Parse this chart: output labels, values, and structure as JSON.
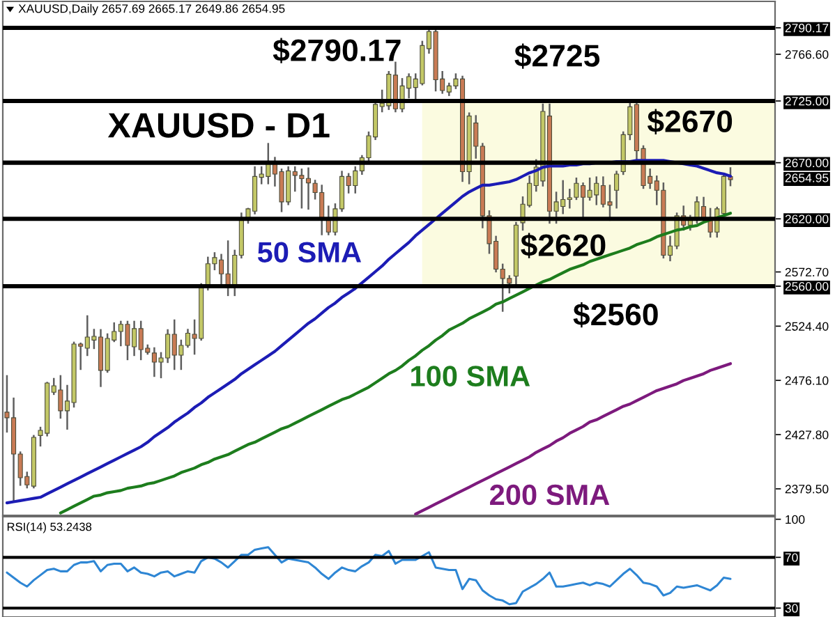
{
  "chart_data": [
    {
      "type": "candlestick",
      "title": "XAUUSD,Daily 2657.69 2665.17 2649.86 2654.95",
      "subtitle": "XAUUSD - D1",
      "categories": [
        null,
        null,
        null,
        null,
        null,
        null,
        null,
        null,
        null,
        null,
        null,
        null,
        null,
        null,
        null,
        null,
        null,
        null,
        null,
        null,
        null,
        null,
        null,
        null,
        null,
        null,
        null,
        null,
        null,
        null,
        null,
        null,
        null,
        null,
        null,
        null,
        null,
        null,
        null,
        null,
        null,
        null,
        null,
        null,
        null,
        null,
        null,
        null,
        null,
        null,
        null,
        null,
        null,
        null,
        null,
        null,
        null,
        null,
        null,
        null,
        null,
        null,
        null,
        null,
        null,
        null,
        null,
        null,
        null,
        null,
        null,
        null,
        null,
        null,
        null,
        null,
        null,
        null,
        null,
        null,
        null,
        null,
        null,
        null,
        null,
        null,
        null,
        null,
        null,
        null,
        null,
        null,
        null,
        null,
        null,
        null,
        null,
        null,
        null,
        null,
        null,
        null,
        null,
        null,
        null,
        null,
        null,
        null,
        null
      ],
      "ohlc": [
        [
          2447.8,
          2480,
          2430.4,
          2442.8
        ],
        [
          2442.8,
          2460,
          2368,
          2410.5
        ],
        [
          2410.5,
          2412,
          2383,
          2389.4
        ],
        [
          2390.5,
          2394,
          2380.7,
          2383
        ],
        [
          2381.9,
          2426.7,
          2380.7,
          2425.4
        ],
        [
          2427,
          2434,
          2418,
          2431.6
        ],
        [
          2429,
          2474,
          2427,
          2473.8
        ],
        [
          2465.5,
          2477.5,
          2463.9,
          2471.3
        ],
        [
          2467.6,
          2480,
          2442.8,
          2449
        ],
        [
          2449,
          2471.3,
          2433,
          2457.7
        ],
        [
          2456.4,
          2509.8,
          2452.7,
          2508.5
        ],
        [
          2508.5,
          2509,
          2486.2,
          2506.5
        ],
        [
          2504.8,
          2533.3,
          2498.6,
          2514.7
        ],
        [
          2512,
          2521.2,
          2504.8,
          2515.3
        ],
        [
          2514.7,
          2521,
          2471,
          2485
        ],
        [
          2485,
          2517.2,
          2483.7,
          2513.5
        ],
        [
          2512,
          2527,
          2511,
          2519.7
        ],
        [
          2519.7,
          2528.4,
          2507.3,
          2526
        ],
        [
          2526,
          2528.4,
          2494.9,
          2507.3
        ],
        [
          2506,
          2528.4,
          2498.6,
          2522.2
        ],
        [
          2522.2,
          2528.4,
          2494.9,
          2503.5
        ],
        [
          2504.8,
          2507.3,
          2499.8,
          2501.1
        ],
        [
          2500.5,
          2504.8,
          2480,
          2492.4
        ],
        [
          2492.4,
          2500.5,
          2478.8,
          2496.1
        ],
        [
          2496.1,
          2520.9,
          2492.4,
          2517.2
        ],
        [
          2517.2,
          2529.6,
          2486.2,
          2498.6
        ],
        [
          2498.6,
          2511.6,
          2486.2,
          2507.3
        ],
        [
          2507.3,
          2521.2,
          2506,
          2518.1
        ],
        [
          2517.2,
          2529.6,
          2499.8,
          2513.5
        ],
        [
          2513.5,
          2561.9,
          2512.3,
          2560.7
        ],
        [
          2559.4,
          2585.5,
          2557,
          2580
        ],
        [
          2580,
          2589.5,
          2575,
          2585.5
        ],
        [
          2583.4,
          2588,
          2560.7,
          2571
        ],
        [
          2571,
          2600,
          2552,
          2558.6
        ],
        [
          2558.6,
          2591.7,
          2552,
          2587.6
        ],
        [
          2587.6,
          2624.8,
          2585.5,
          2620.6
        ],
        [
          2620.6,
          2629,
          2616.5,
          2628.9
        ],
        [
          2626.8,
          2666,
          2624.8,
          2657.8
        ],
        [
          2657,
          2666,
          2651.6,
          2659.9
        ],
        [
          2657.8,
          2686.8,
          2651.6,
          2671.1
        ],
        [
          2671.1,
          2674.4,
          2649.6,
          2659.9
        ],
        [
          2662,
          2664,
          2626.8,
          2635.1
        ],
        [
          2635.1,
          2666,
          2633,
          2662.7
        ],
        [
          2662,
          2666,
          2645,
          2658.7
        ],
        [
          2658.7,
          2664,
          2630,
          2655.8
        ],
        [
          2656,
          2665,
          2629,
          2652
        ],
        [
          2651.6,
          2654,
          2638,
          2643.4
        ],
        [
          2643.4,
          2649.6,
          2606.2,
          2620.6
        ],
        [
          2620.6,
          2631,
          2606.2,
          2608.2
        ],
        [
          2608.2,
          2633,
          2606,
          2628.9
        ],
        [
          2628.9,
          2662,
          2627,
          2657.8
        ],
        [
          2657.8,
          2660,
          2643.4,
          2649.6
        ],
        [
          2649.6,
          2666,
          2643.4,
          2662.7
        ],
        [
          2662.7,
          2676,
          2660,
          2674.4
        ],
        [
          2674.4,
          2697,
          2672,
          2694
        ],
        [
          2693,
          2726,
          2691,
          2722
        ],
        [
          2720,
          2734.3,
          2715.7,
          2723
        ],
        [
          2720.7,
          2750.9,
          2717.8,
          2748.8
        ],
        [
          2748,
          2759.2,
          2715.7,
          2718
        ],
        [
          2718,
          2744.6,
          2715.7,
          2738.4
        ],
        [
          2736.4,
          2748.8,
          2728.1,
          2746.7
        ],
        [
          2737,
          2748.8,
          2726,
          2744.6
        ],
        [
          2740.5,
          2777.8,
          2739.7,
          2774.4
        ],
        [
          2771.6,
          2788.1,
          2767.9,
          2786.9
        ],
        [
          2786.9,
          2790.17,
          2734.3,
          2743.9
        ],
        [
          2744.6,
          2750.9,
          2732.2,
          2734.3
        ],
        [
          2733,
          2740.5,
          2730.2,
          2738.4
        ],
        [
          2738.4,
          2748.8,
          2736.4,
          2744.6
        ],
        [
          2744.6,
          2746.7,
          2653.7,
          2662
        ],
        [
          2662,
          2714,
          2651.6,
          2711.6
        ],
        [
          2705.4,
          2711.6,
          2674.4,
          2684.7
        ],
        [
          2684.7,
          2686.8,
          2612.4,
          2622.7
        ],
        [
          2622.7,
          2626.8,
          2589.6,
          2597.9
        ],
        [
          2600,
          2604.1,
          2573.1,
          2575.2
        ],
        [
          2575.2,
          2579.3,
          2538,
          2566.9
        ],
        [
          2566.9,
          2569,
          2554.4,
          2562.7
        ],
        [
          2569,
          2616.5,
          2562,
          2614.4
        ],
        [
          2616.5,
          2639.2,
          2610.3,
          2633
        ],
        [
          2632,
          2657.8,
          2631,
          2651.6
        ],
        [
          2649.6,
          2672.3,
          2645,
          2666.1
        ],
        [
          2653.7,
          2721.9,
          2649.6,
          2715.7
        ],
        [
          2711.6,
          2721.9,
          2616.5,
          2626.8
        ],
        [
          2626.8,
          2643.4,
          2616.5,
          2635.1
        ],
        [
          2631,
          2653.7,
          2625,
          2637.2
        ],
        [
          2637.2,
          2646,
          2630,
          2638.8
        ],
        [
          2639.2,
          2656,
          2637.6,
          2651.6
        ],
        [
          2649.6,
          2651.6,
          2620.6,
          2639.2
        ],
        [
          2639.2,
          2656,
          2637,
          2645.4
        ],
        [
          2641.3,
          2657,
          2633,
          2651.6
        ],
        [
          2649.6,
          2657,
          2631,
          2633
        ],
        [
          2635.1,
          2649.6,
          2619,
          2632.2
        ],
        [
          2645.4,
          2662,
          2630,
          2659.9
        ],
        [
          2662,
          2697.1,
          2659.9,
          2695
        ],
        [
          2695,
          2724,
          2690.9,
          2719.8
        ],
        [
          2721.9,
          2726,
          2672.3,
          2680.6
        ],
        [
          2682.6,
          2684.7,
          2647.5,
          2649.6
        ],
        [
          2657.8,
          2664,
          2647.5,
          2651.6
        ],
        [
          2653.7,
          2657.8,
          2633,
          2645.4
        ],
        [
          2645.4,
          2651.6,
          2585.5,
          2587.6
        ],
        [
          2587.6,
          2604.1,
          2583,
          2595.8
        ],
        [
          2595.8,
          2624.8,
          2593.8,
          2622.7
        ],
        [
          2622.7,
          2631,
          2610.3,
          2614.4
        ],
        [
          2614.4,
          2622.7,
          2610.3,
          2618.6
        ],
        [
          2620.6,
          2639.2,
          2616.5,
          2635.1
        ],
        [
          2631,
          2638.8,
          2618.6,
          2620.6
        ],
        [
          2620.6,
          2628.9,
          2604.1,
          2608.2
        ],
        [
          2608.2,
          2630,
          2604.1,
          2628.9
        ],
        [
          2624.8,
          2659.9,
          2622.7,
          2657.8
        ],
        [
          2657.69,
          2665.17,
          2649.86,
          2654.95
        ]
      ],
      "colors": [
        "#c97b55",
        "#c97b55",
        "#c97b55",
        "#c97b55",
        "#c3c867",
        "#c3c867",
        "#c3c867",
        "#c3c867",
        "#c97b55",
        "#c3c867",
        "#c3c867",
        "#c97b55",
        "#c3c867",
        "#c3c867",
        "#c97b55",
        "#c3c867",
        "#c3c867",
        "#c3c867",
        "#c97b55",
        "#c3c867",
        "#c97b55",
        "#c97b55",
        "#c97b55",
        "#c3c867",
        "#c3c867",
        "#c97b55",
        "#c3c867",
        "#c3c867",
        "#c97b55",
        "#c3c867",
        "#c3c867",
        "#c3c867",
        "#c97b55",
        "#c97b55",
        "#c3c867",
        "#c3c867",
        "#c3c867",
        "#c3c867",
        "#c3c867",
        "#c3c867",
        "#c97b55",
        "#c97b55",
        "#c3c867",
        "#c97b55",
        "#c97b55",
        "#c97b55",
        "#c97b55",
        "#c97b55",
        "#c97b55",
        "#c3c867",
        "#c3c867",
        "#c97b55",
        "#c3c867",
        "#c3c867",
        "#c3c867",
        "#c3c867",
        "#c3c867",
        "#c3c867",
        "#c97b55",
        "#c3c867",
        "#c3c867",
        "#c3c867",
        "#c3c867",
        "#c3c867",
        "#c97b55",
        "#c97b55",
        "#c3c867",
        "#c3c867",
        "#c97b55",
        "#c3c867",
        "#c97b55",
        "#c97b55",
        "#c97b55",
        "#c97b55",
        "#c97b55",
        "#c97b55",
        "#c3c867",
        "#c3c867",
        "#c3c867",
        "#c3c867",
        "#c3c867",
        "#c97b55",
        "#c3c867",
        "#c3c867",
        "#c3c867",
        "#c3c867",
        "#c97b55",
        "#c3c867",
        "#c3c867",
        "#c97b55",
        "#c97b55",
        "#c3c867",
        "#c3c867",
        "#c3c867",
        "#c97b55",
        "#c97b55",
        "#c97b55",
        "#c97b55",
        "#c97b55",
        "#c3c867",
        "#c3c867",
        "#c97b55",
        "#c3c867",
        "#c3c867",
        "#c97b55",
        "#c97b55",
        "#c3c867",
        "#c3c867",
        "#c97b55"
      ],
      "series": [
        {
          "name": "50 SMA",
          "type": "line",
          "color": "#1c1cb5",
          "values": [
            2367,
            2368,
            2369,
            2370,
            2371,
            2372,
            2375,
            2378,
            2381,
            2384,
            2387,
            2390,
            2393,
            2396,
            2399,
            2402,
            2405,
            2408,
            2411,
            2414,
            2417,
            2421,
            2426,
            2430,
            2434,
            2439,
            2443,
            2447,
            2452,
            2456,
            2461,
            2465,
            2469,
            2473,
            2477,
            2482,
            2486,
            2490,
            2494,
            2498,
            2502,
            2507,
            2512,
            2517,
            2522,
            2527,
            2531,
            2536,
            2541,
            2545,
            2550,
            2554,
            2558,
            2563,
            2568,
            2573,
            2578,
            2584,
            2589,
            2594,
            2599,
            2605,
            2610,
            2615,
            2620,
            2625,
            2630,
            2635,
            2640,
            2644,
            2647,
            2650,
            2650,
            2651,
            2652,
            2653,
            2655,
            2658,
            2661,
            2663,
            2666,
            2667,
            2667,
            2667,
            2668,
            2668,
            2669,
            2669,
            2670,
            2670,
            2670,
            2671,
            2671,
            2671,
            2672,
            2672,
            2672,
            2672,
            2672,
            2671,
            2670,
            2669,
            2668,
            2667,
            2665,
            2663,
            2661,
            2660,
            2658
          ]
        },
        {
          "name": "100 SMA",
          "type": "line",
          "color": "#1d7d1d",
          "values": [
            null,
            null,
            null,
            null,
            null,
            null,
            null,
            null,
            2358,
            2361,
            2364,
            2367,
            2370,
            2373,
            2374,
            2376,
            2377,
            2378,
            2380,
            2381,
            2382,
            2384,
            2385,
            2387,
            2389,
            2391,
            2394,
            2396,
            2398,
            2401,
            2403,
            2406,
            2408,
            2410,
            2413,
            2416,
            2419,
            2421,
            2424,
            2427,
            2430,
            2433,
            2435,
            2438,
            2441,
            2444,
            2447,
            2450,
            2453,
            2456,
            2459,
            2461,
            2464,
            2467,
            2470,
            2474,
            2478,
            2482,
            2485,
            2489,
            2494,
            2498,
            2503,
            2507,
            2512,
            2516,
            2521,
            2524,
            2527,
            2531,
            2534,
            2537,
            2540,
            2544,
            2546,
            2549,
            2552,
            2555,
            2558,
            2561,
            2564,
            2566,
            2569,
            2572,
            2575,
            2577,
            2579,
            2582,
            2584,
            2586,
            2588,
            2590,
            2592,
            2594,
            2597,
            2599,
            2601,
            2604,
            2606,
            2608,
            2610,
            2611,
            2613,
            2614,
            2617,
            2619,
            2621,
            2623,
            2625
          ]
        },
        {
          "name": "200 SMA",
          "type": "line",
          "color": "#7d1a7d",
          "values": [
            null,
            null,
            null,
            null,
            null,
            null,
            null,
            null,
            null,
            null,
            null,
            null,
            null,
            null,
            null,
            null,
            null,
            null,
            null,
            null,
            null,
            null,
            null,
            null,
            null,
            null,
            null,
            null,
            null,
            null,
            null,
            null,
            null,
            null,
            null,
            null,
            null,
            null,
            null,
            null,
            null,
            null,
            null,
            null,
            null,
            null,
            null,
            null,
            null,
            null,
            null,
            null,
            null,
            null,
            null,
            null,
            null,
            null,
            null,
            null,
            null,
            2357,
            2360,
            2363,
            2366,
            2369,
            2372,
            2375,
            2378,
            2381,
            2384,
            2387,
            2390,
            2393,
            2396,
            2399,
            2402,
            2405,
            2408,
            2412,
            2415,
            2418,
            2422,
            2425,
            2429,
            2432,
            2435,
            2439,
            2441,
            2444,
            2447,
            2450,
            2453,
            2455,
            2458,
            2461,
            2464,
            2467,
            2469,
            2471,
            2473,
            2476,
            2478,
            2480,
            2482,
            2485,
            2487,
            2489,
            2491
          ]
        }
      ],
      "ylim": [
        2355.9,
        2813.7
      ],
      "yticks": [
        {
          "value": 2790.17,
          "label": "2790.17"
        },
        {
          "value": 2766.6,
          "label": "2766.60"
        },
        {
          "value": 2725,
          "label": "2725.00"
        },
        {
          "value": 2670,
          "label": "2670.00"
        },
        {
          "value": 2620,
          "label": "2620.00"
        },
        {
          "value": 2572.7,
          "label": "2572.70"
        },
        {
          "value": 2560,
          "label": "2560.00"
        },
        {
          "value": 2524.4,
          "label": "2524.40"
        },
        {
          "value": 2476.1,
          "label": "2476.10"
        },
        {
          "value": 2427.8,
          "label": "2427.80"
        },
        {
          "value": 2379.5,
          "label": "2379.50"
        }
      ],
      "ref_lines": [
        {
          "axis": "y",
          "value": 2790.17,
          "label": "$2790.17",
          "color": "#000000"
        },
        {
          "axis": "y",
          "value": 2725,
          "label": "$2725",
          "color": "#000000"
        },
        {
          "axis": "y",
          "value": 2670,
          "label": "$2670",
          "color": "#000000"
        },
        {
          "axis": "y",
          "value": 2620,
          "label": "$2620",
          "color": "#000000"
        },
        {
          "axis": "y",
          "value": 2560,
          "label": "$2560",
          "color": "#000000"
        }
      ],
      "bands": [
        {
          "axis": "y",
          "from": 2560,
          "to": 2725,
          "color": "#fbfbe0"
        }
      ],
      "annotations": [
        "2654.95"
      ],
      "tick_labels": "y"
    },
    {
      "type": "line",
      "title": "RSI(14) 53.2438",
      "categories": [
        null,
        null,
        null,
        null,
        null,
        null,
        null,
        null,
        null,
        null,
        null,
        null,
        null,
        null,
        null,
        null,
        null,
        null,
        null,
        null,
        null,
        null,
        null,
        null,
        null,
        null,
        null,
        null,
        null,
        null,
        null,
        null,
        null,
        null,
        null,
        null,
        null,
        null,
        null,
        null,
        null,
        null,
        null,
        null,
        null,
        null,
        null,
        null,
        null,
        null,
        null,
        null,
        null,
        null,
        null,
        null,
        null,
        null,
        null,
        null,
        null,
        null,
        null,
        null,
        null,
        null,
        null,
        null,
        null,
        null,
        null,
        null,
        null,
        null,
        null,
        null,
        null,
        null,
        null,
        null,
        null,
        null,
        null,
        null,
        null,
        null,
        null,
        null,
        null,
        null,
        null,
        null,
        null,
        null,
        null,
        null,
        null,
        null,
        null,
        null,
        null,
        null,
        null,
        null,
        null,
        null,
        null,
        null,
        null
      ],
      "series": [
        {
          "color": "#2e86d4",
          "values": [
            58,
            54,
            50,
            47,
            52,
            56,
            60,
            61,
            59,
            59,
            64,
            66,
            66,
            67,
            59,
            64,
            65,
            65,
            59,
            62,
            58,
            57,
            55,
            58,
            59,
            55,
            57,
            59,
            58,
            67,
            70,
            69,
            66,
            62,
            67,
            72,
            72,
            76,
            77,
            78,
            72,
            66,
            69,
            68,
            67,
            66,
            62,
            57,
            53,
            58,
            62,
            60,
            59,
            63,
            66,
            72,
            71,
            75,
            65,
            68,
            68,
            68,
            71,
            74,
            62,
            61,
            60,
            60,
            45,
            53,
            52,
            44,
            40,
            37,
            36,
            33,
            34,
            43,
            46,
            49,
            53,
            58,
            47,
            47,
            48,
            49,
            50,
            48,
            50,
            49,
            47,
            52,
            57,
            61,
            56,
            50,
            49,
            47,
            40,
            42,
            47,
            46,
            47,
            48,
            46,
            44,
            48,
            54,
            53
          ]
        }
      ],
      "ylim": [
        23,
        102
      ],
      "yticks": [
        100,
        70,
        30
      ],
      "ref_lines": [
        {
          "axis": "y",
          "value": 70,
          "color": "#000000"
        },
        {
          "axis": "y",
          "value": 30,
          "color": "#000000"
        }
      ],
      "tick_labels": "y"
    }
  ]
}
